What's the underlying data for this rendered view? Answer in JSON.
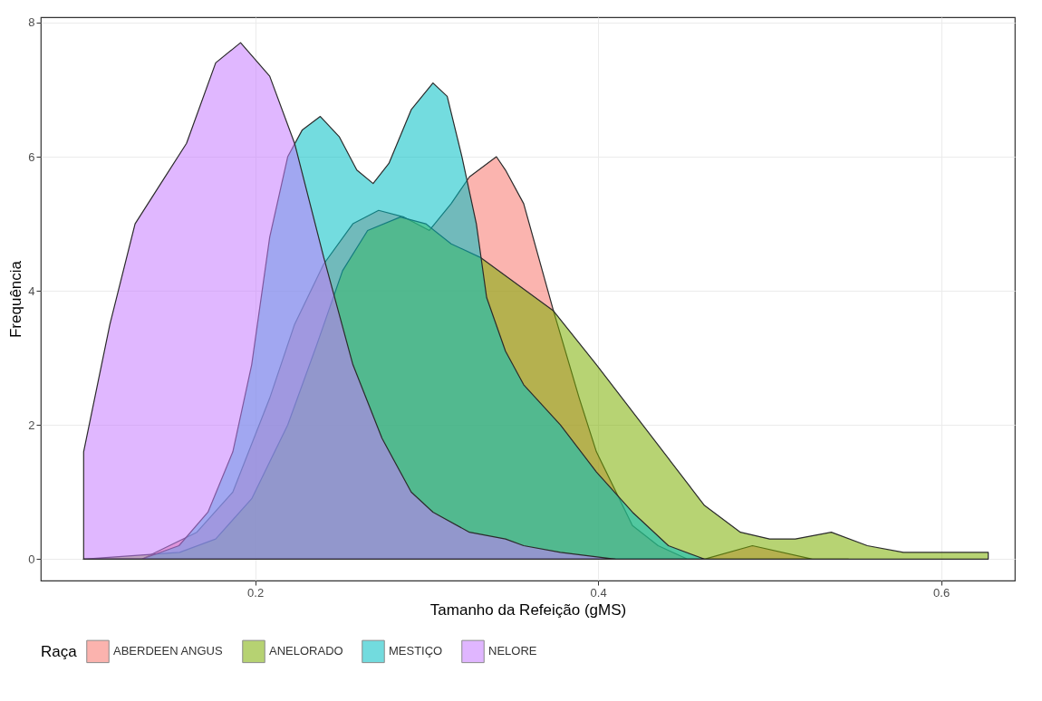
{
  "chart_data": {
    "type": "area",
    "xlabel": "Tamanho da Refeição (gMS)",
    "ylabel": "Frequência",
    "legend_title": "Raça",
    "legend": "bottom",
    "grid": true,
    "xlim": [
      0.075,
      0.643
    ],
    "xticks": [
      0.2,
      0.4,
      0.6
    ],
    "ylim": [
      -0.32,
      8.08
    ],
    "yticks": [
      0,
      2,
      4,
      6,
      8
    ],
    "series": [
      {
        "name": "ABERDEEN ANGUS",
        "color": "#f8766d",
        "x": [
          0.1,
          0.134,
          0.166,
          0.187,
          0.2085,
          0.223,
          0.24,
          0.257,
          0.272,
          0.2868,
          0.3016,
          0.3143,
          0.325,
          0.3407,
          0.346,
          0.3566,
          0.374,
          0.389,
          0.399,
          0.42,
          0.435,
          0.452,
          0.462,
          0.49,
          0.525,
          0.546
        ],
        "values": [
          0,
          0,
          0.4,
          1,
          2.4,
          3.5,
          4.4,
          5,
          5.2,
          5.1,
          4.9,
          5.3,
          5.7,
          6,
          5.8,
          5.3,
          3.7,
          2.4,
          1.6,
          0.5,
          0.2,
          0,
          0,
          0.2,
          0,
          0
        ]
      },
      {
        "name": "ANELORADO",
        "color": "#7cae00",
        "x": [
          0.1,
          0.156,
          0.177,
          0.198,
          0.219,
          0.236,
          0.251,
          0.2656,
          0.2847,
          0.2995,
          0.3143,
          0.3312,
          0.374,
          0.399,
          0.42,
          0.441,
          0.462,
          0.483,
          0.5,
          0.515,
          0.536,
          0.557,
          0.578,
          0.599,
          0.6275
        ],
        "values": [
          0,
          0.1,
          0.3,
          0.9,
          2,
          3.2,
          4.3,
          4.9,
          5.1,
          5,
          4.7,
          4.5,
          3.7,
          2.9,
          2.2,
          1.5,
          0.8,
          0.4,
          0.3,
          0.3,
          0.4,
          0.2,
          0.1,
          0.1,
          0.1
        ]
      },
      {
        "name": "MESTIÇO",
        "color": "#00bfc4",
        "x": [
          0.1,
          0.134,
          0.1556,
          0.1725,
          0.187,
          0.198,
          0.2085,
          0.219,
          0.2275,
          0.238,
          0.249,
          0.2593,
          0.2688,
          0.278,
          0.291,
          0.3037,
          0.312,
          0.3206,
          0.329,
          0.335,
          0.346,
          0.3566,
          0.378,
          0.399,
          0.42,
          0.441,
          0.462
        ],
        "values": [
          0,
          0,
          0.2,
          0.7,
          1.6,
          2.9,
          4.8,
          6,
          6.4,
          6.6,
          6.3,
          5.8,
          5.6,
          5.9,
          6.7,
          7.1,
          6.9,
          6,
          5,
          3.9,
          3.1,
          2.6,
          2,
          1.3,
          0.7,
          0.2,
          0
        ]
      },
      {
        "name": "NELORE",
        "color": "#c77cff",
        "x": [
          0.1,
          0.1153,
          0.13,
          0.145,
          0.16,
          0.177,
          0.1915,
          0.2085,
          0.223,
          0.24,
          0.257,
          0.274,
          0.291,
          0.3037,
          0.325,
          0.346,
          0.3566,
          0.378,
          0.41
        ],
        "values": [
          1.6,
          3.5,
          5,
          5.6,
          6.2,
          7.4,
          7.7,
          7.2,
          6.2,
          4.5,
          2.9,
          1.8,
          1,
          0.7,
          0.4,
          0.3,
          0.2,
          0.1,
          0
        ]
      }
    ]
  }
}
